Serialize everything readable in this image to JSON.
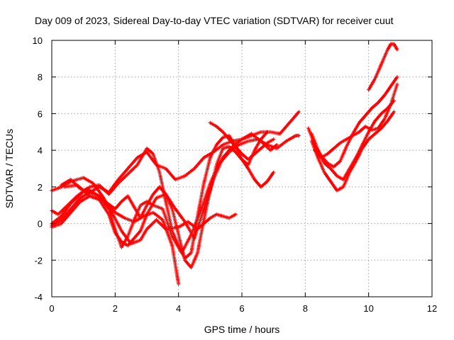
{
  "chart_data": {
    "type": "scatter",
    "title": "Day 009 of 2023, Sidereal Day-to-day VTEC variation (SDTVAR) for receiver cuut",
    "xlabel": "GPS time / hours",
    "ylabel": "SDTVAR / TECUs",
    "xlim": [
      0,
      12
    ],
    "ylim": [
      -4,
      10
    ],
    "xticks": [
      "0",
      "2",
      "4",
      "6",
      "8",
      "10",
      "12"
    ],
    "yticks": [
      "-4",
      "-2",
      "0",
      "2",
      "4",
      "6",
      "8",
      "10"
    ],
    "grid": true,
    "marker": "plus",
    "color": "#ff0000",
    "series": [
      {
        "x": [
          0.0,
          0.3,
          0.6,
          1.0,
          1.3,
          1.6,
          1.9,
          2.2,
          2.5,
          2.8,
          3.0,
          3.3,
          3.6,
          4.0,
          4.3,
          4.6,
          4.8,
          5.0,
          5.2,
          5.4,
          5.6,
          5.8
        ],
        "y": [
          1.8,
          2.0,
          2.3,
          2.5,
          2.2,
          1.5,
          0.6,
          -0.4,
          -1.1,
          -0.9,
          -0.3,
          0.2,
          -0.3,
          -0.2,
          0.1,
          -0.3,
          0.0,
          0.3,
          0.5,
          0.4,
          0.3,
          0.5
        ]
      },
      {
        "x": [
          0.0,
          0.2,
          0.5,
          0.8,
          1.1,
          1.4,
          1.7,
          2.0,
          2.3,
          2.6,
          2.9,
          3.2,
          3.5,
          3.8,
          4.0
        ],
        "y": [
          0.7,
          0.5,
          1.0,
          1.5,
          1.9,
          1.6,
          1.2,
          0.6,
          0.3,
          0.1,
          0.4,
          0.6,
          0.2,
          -1.2,
          -3.3
        ]
      },
      {
        "x": [
          0.0,
          0.3,
          0.6,
          0.9,
          1.2,
          1.5,
          1.8,
          2.0,
          2.2,
          2.4,
          2.6,
          2.8,
          3.0,
          3.2,
          3.5,
          3.8,
          4.1,
          4.4,
          4.7,
          5.0,
          5.3,
          5.6,
          5.9,
          6.2,
          6.5,
          6.8,
          7.1,
          7.4,
          7.7,
          7.8
        ],
        "y": [
          -0.1,
          0.2,
          0.8,
          1.4,
          1.7,
          1.5,
          0.8,
          -0.3,
          -1.3,
          -0.7,
          0.2,
          1.0,
          1.2,
          1.0,
          0.8,
          -0.7,
          -1.6,
          -0.6,
          0.7,
          2.2,
          3.3,
          3.9,
          4.3,
          4.5,
          4.6,
          4.3,
          4.1,
          4.5,
          4.8,
          4.8
        ]
      },
      {
        "x": [
          0.0,
          0.3,
          0.6,
          0.9,
          1.2,
          1.5,
          1.8,
          2.0,
          2.2,
          2.4,
          2.6,
          2.8,
          3.0,
          3.3,
          3.6,
          3.9,
          4.2,
          4.5,
          4.8,
          5.1,
          5.4,
          5.7,
          6.0,
          6.3,
          6.6,
          6.9,
          7.2,
          7.5,
          7.8
        ],
        "y": [
          -0.2,
          0.0,
          0.6,
          1.2,
          1.5,
          1.3,
          0.5,
          -0.5,
          -1.0,
          -1.2,
          -0.8,
          -0.4,
          0.5,
          1.4,
          1.6,
          0.8,
          0.1,
          -0.8,
          0.8,
          2.4,
          3.6,
          4.2,
          4.6,
          4.8,
          5.0,
          5.0,
          4.9,
          5.5,
          6.1
        ]
      },
      {
        "x": [
          0.0,
          0.3,
          0.6,
          0.9,
          1.2,
          1.5,
          1.8,
          2.1,
          2.4,
          2.7,
          3.0,
          3.2,
          3.4,
          3.6,
          3.8,
          4.0,
          4.2,
          4.4,
          4.6,
          4.8,
          5.0,
          5.2,
          5.4,
          5.6,
          5.8,
          6.0,
          6.2,
          6.4,
          6.6,
          6.8,
          7.0
        ],
        "y": [
          0.0,
          0.4,
          1.1,
          1.6,
          2.0,
          2.1,
          1.6,
          2.2,
          2.7,
          3.2,
          4.1,
          3.8,
          2.8,
          1.2,
          -0.4,
          -1.2,
          -1.9,
          -1.6,
          0.4,
          2.2,
          3.6,
          4.3,
          4.7,
          4.8,
          4.2,
          3.5,
          3.0,
          2.4,
          2.0,
          2.3,
          2.8
        ]
      },
      {
        "x": [
          0.3,
          0.6,
          0.9,
          1.2,
          1.5,
          1.8,
          2.1,
          2.4,
          2.7,
          3.0,
          3.3,
          3.6,
          3.9,
          4.2,
          4.5,
          4.8,
          5.1,
          5.4,
          5.7,
          6.0,
          6.3,
          6.6,
          6.9,
          7.1
        ],
        "y": [
          2.1,
          2.4,
          1.9,
          1.7,
          2.0,
          1.7,
          2.4,
          3.0,
          3.6,
          3.9,
          3.2,
          3.0,
          2.4,
          2.6,
          3.0,
          3.6,
          3.9,
          4.3,
          4.5,
          4.6,
          4.9,
          4.5,
          4.0,
          4.3
        ]
      },
      {
        "x": [
          0.4,
          0.8,
          1.2,
          1.6,
          2.0,
          2.2,
          2.4,
          2.6,
          2.8,
          3.0,
          3.2,
          3.4,
          3.6,
          3.8,
          4.0,
          4.2,
          4.4,
          4.6,
          4.8,
          5.0,
          5.2,
          5.4,
          5.6,
          5.8,
          6.0,
          6.2,
          6.4,
          6.6,
          6.8
        ],
        "y": [
          2.0,
          2.1,
          1.5,
          1.3,
          0.8,
          1.2,
          1.5,
          0.9,
          0.3,
          1.0,
          1.6,
          2.0,
          1.6,
          0.8,
          -0.6,
          -2.0,
          -2.4,
          -1.6,
          0.2,
          1.8,
          3.2,
          4.1,
          4.2,
          3.9,
          3.5,
          3.2,
          4.0,
          4.6,
          5.0
        ]
      },
      {
        "x": [
          5.0,
          5.2,
          5.4,
          5.6,
          5.8,
          6.0,
          6.2,
          6.4,
          6.6,
          6.8,
          7.0
        ],
        "y": [
          5.5,
          5.3,
          5.0,
          4.6,
          4.2,
          3.8,
          3.5,
          3.8,
          4.1,
          4.4,
          4.6
        ]
      },
      {
        "x": [
          8.1,
          8.3,
          8.5,
          8.7,
          8.9,
          9.1,
          9.3,
          9.5,
          9.7,
          9.9,
          10.1,
          10.3,
          10.5,
          10.7,
          10.9
        ],
        "y": [
          5.2,
          4.3,
          3.7,
          3.3,
          3.1,
          3.4,
          4.2,
          4.9,
          5.5,
          5.9,
          6.3,
          6.6,
          7.0,
          7.5,
          8.0
        ]
      },
      {
        "x": [
          8.2,
          8.4,
          8.6,
          8.8,
          9.0,
          9.2,
          9.4,
          9.6,
          9.8,
          10.0,
          10.2,
          10.4,
          10.6,
          10.8
        ],
        "y": [
          4.9,
          4.0,
          3.3,
          3.0,
          2.6,
          2.4,
          3.0,
          3.6,
          4.3,
          5.0,
          5.6,
          6.0,
          6.3,
          6.7
        ]
      },
      {
        "x": [
          8.2,
          8.4,
          8.6,
          8.8,
          9.0,
          9.2,
          9.4,
          9.6,
          9.8,
          10.0,
          10.2,
          10.4,
          10.6,
          10.8
        ],
        "y": [
          4.5,
          3.6,
          2.8,
          2.3,
          1.8,
          2.0,
          2.8,
          3.4,
          4.1,
          4.6,
          4.9,
          5.2,
          5.6,
          6.1
        ]
      },
      {
        "x": [
          8.3,
          8.5,
          8.7,
          8.9,
          9.1,
          9.3,
          9.5,
          9.7,
          9.9,
          10.1,
          10.3,
          10.5,
          10.7,
          10.9
        ],
        "y": [
          4.0,
          3.6,
          3.8,
          4.1,
          4.4,
          4.6,
          4.8,
          5.0,
          5.3,
          5.1,
          5.2,
          5.7,
          6.5,
          7.6
        ]
      },
      {
        "x": [
          10.0,
          10.2,
          10.4,
          10.6,
          10.7,
          10.8,
          10.9
        ],
        "y": [
          7.3,
          7.9,
          8.7,
          9.5,
          9.8,
          9.8,
          9.5
        ]
      }
    ]
  }
}
